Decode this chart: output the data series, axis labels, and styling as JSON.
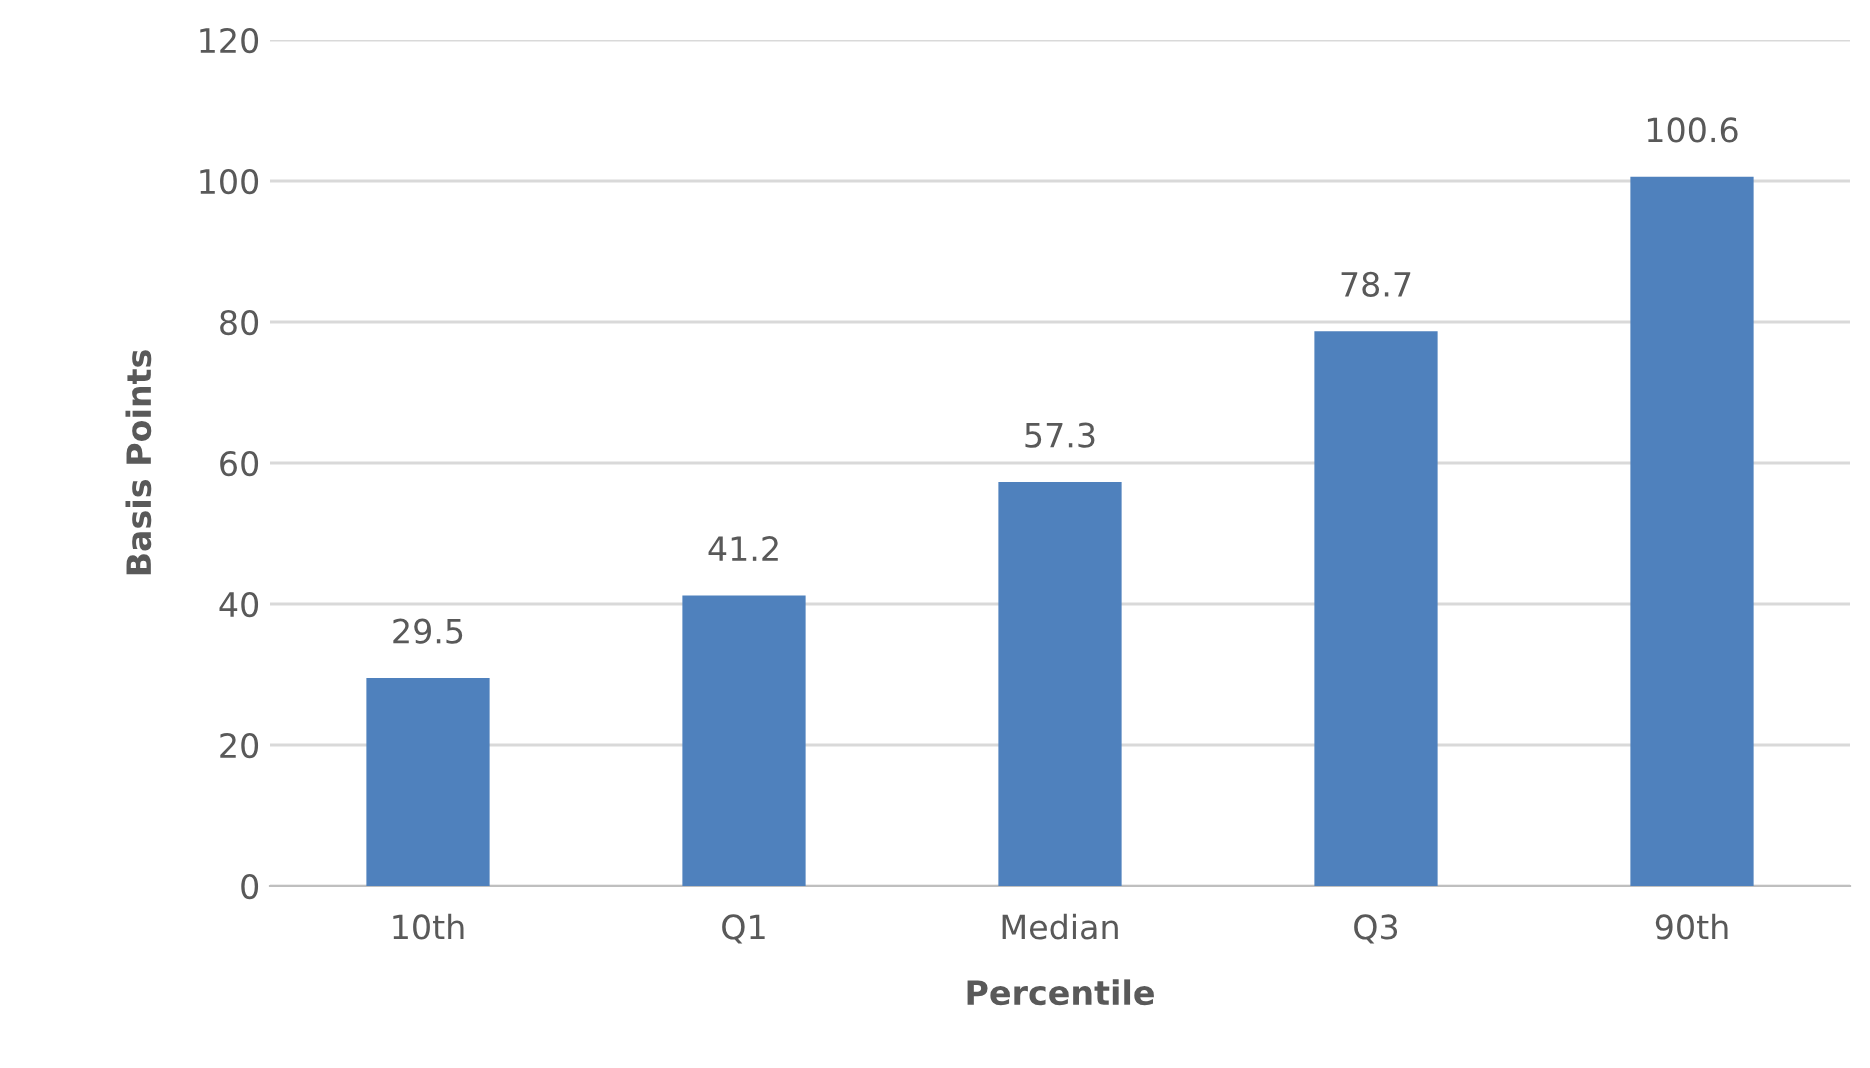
{
  "chart_data": {
    "type": "bar",
    "xlabel": "Percentile",
    "ylabel": "Basis Points",
    "categories": [
      "10th",
      "Q1",
      "Median",
      "Q3",
      "90th"
    ],
    "values": [
      29.5,
      41.2,
      57.3,
      78.7,
      100.6
    ],
    "color": "#4f81bd",
    "ylim": [
      0,
      120
    ],
    "yticks": [
      0,
      20,
      40,
      60,
      80,
      100,
      120
    ],
    "grid": "y",
    "data_labels": true
  }
}
